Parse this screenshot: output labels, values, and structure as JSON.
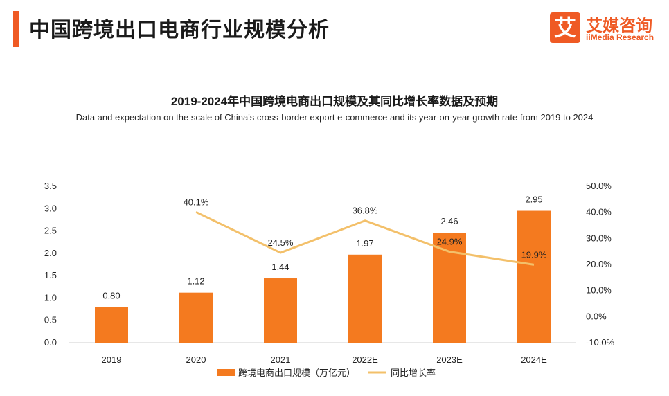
{
  "header": {
    "title": "中国跨境出口电商行业规模分析",
    "logo_mark": "艾",
    "logo_cn": "艾媒咨询",
    "logo_en": "iiMedia Research"
  },
  "colors": {
    "accent": "#ef5a24",
    "bar": "#f47a1f",
    "line": "#f3c06a"
  },
  "chart_data": {
    "type": "bar",
    "title": "2019-2024年中国跨境电商出口规模及其同比增长率数据及预期",
    "subtitle": "Data and expectation on the scale of China's cross-border export e-commerce and its year-on-year growth rate from 2019 to 2024",
    "categories": [
      "2019",
      "2020",
      "2021",
      "2022E",
      "2023E",
      "2024E"
    ],
    "series": [
      {
        "name": "跨境电商出口规模（万亿元）",
        "type": "bar",
        "axis": "left",
        "values": [
          0.8,
          1.12,
          1.44,
          1.97,
          2.46,
          2.95
        ],
        "labels": [
          "0.80",
          "1.12",
          "1.44",
          "1.97",
          "2.46",
          "2.95"
        ]
      },
      {
        "name": "同比增长率",
        "type": "line",
        "axis": "right",
        "values": [
          null,
          40.1,
          24.5,
          36.8,
          24.9,
          19.9
        ],
        "labels": [
          "",
          "40.1%",
          "24.5%",
          "36.8%",
          "24.9%",
          "19.9%"
        ]
      }
    ],
    "ylim": [
      0,
      3.5
    ],
    "yticks": [
      "0.0",
      "0.5",
      "1.0",
      "1.5",
      "2.0",
      "2.5",
      "3.0",
      "3.5"
    ],
    "y2lim": [
      -10,
      50
    ],
    "y2ticks": [
      "-10.0%",
      "0.0%",
      "10.0%",
      "20.0%",
      "30.0%",
      "40.0%",
      "50.0%"
    ],
    "legend_position": "bottom"
  }
}
